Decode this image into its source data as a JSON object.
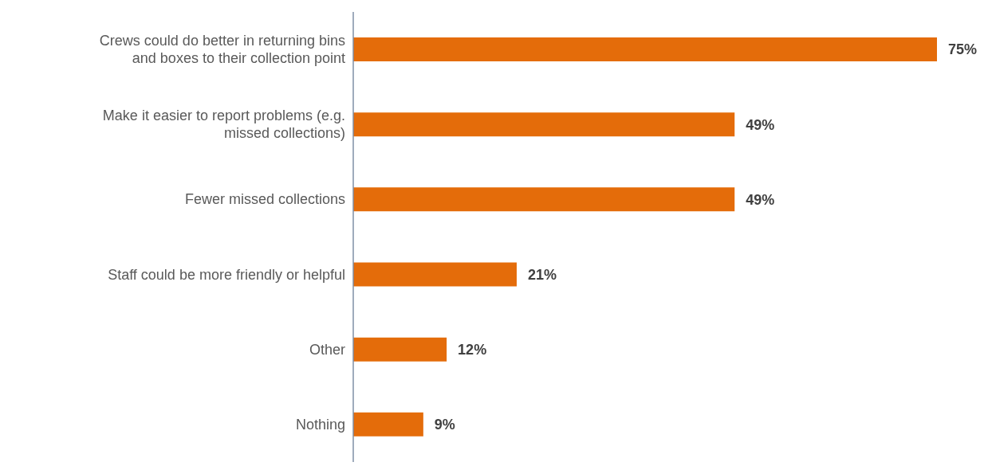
{
  "chart_data": {
    "type": "bar",
    "orientation": "horizontal",
    "categories": [
      "Crews could do better in returning bins and boxes to their collection point",
      "Make it easier to report problems (e.g. missed collections)",
      "Fewer missed collections",
      "Staff could be more friendly or helpful",
      "Other",
      "Nothing"
    ],
    "values": [
      75,
      49,
      49,
      21,
      12,
      9
    ],
    "value_labels": [
      "75%",
      "49%",
      "49%",
      "21%",
      "12%",
      "9%"
    ],
    "color": "#e46c0a",
    "grid": false,
    "legend": false
  }
}
